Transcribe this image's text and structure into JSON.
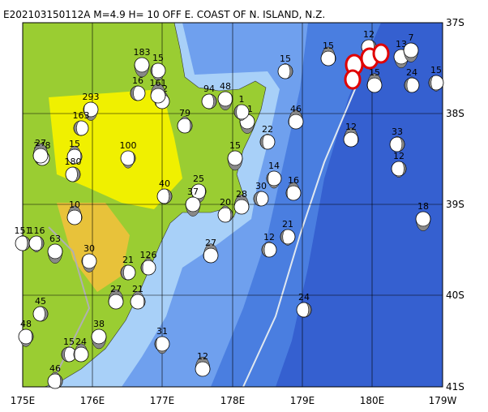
{
  "title": "E202103150112A  M=4.9  H= 10  OFF E. COAST OF N. ISLAND, N.Z.",
  "lon_labels": [
    "175E",
    "176E",
    "177E",
    "178E",
    "179E",
    "180E",
    "179W"
  ],
  "lat_labels": [
    "37S",
    "38S",
    "39S",
    "40S",
    "41S"
  ],
  "depth_labels": [
    "183",
    "15",
    "16",
    "12",
    "161",
    "79",
    "94",
    "48",
    "21",
    "1",
    "22",
    "46",
    "12",
    "33",
    "12",
    "18",
    "293",
    "163",
    "248",
    "27",
    "15",
    "180",
    "100",
    "15",
    "14",
    "30",
    "16",
    "28",
    "20",
    "40",
    "25",
    "37",
    "21",
    "12",
    "27",
    "10",
    "151",
    "116",
    "63",
    "30",
    "21",
    "126",
    "27",
    "21",
    "45",
    "48",
    "38",
    "31",
    "15",
    "24",
    "12",
    "46",
    "24",
    "13",
    "7",
    "15",
    "24",
    "15",
    "15",
    "15",
    "12"
  ]
}
